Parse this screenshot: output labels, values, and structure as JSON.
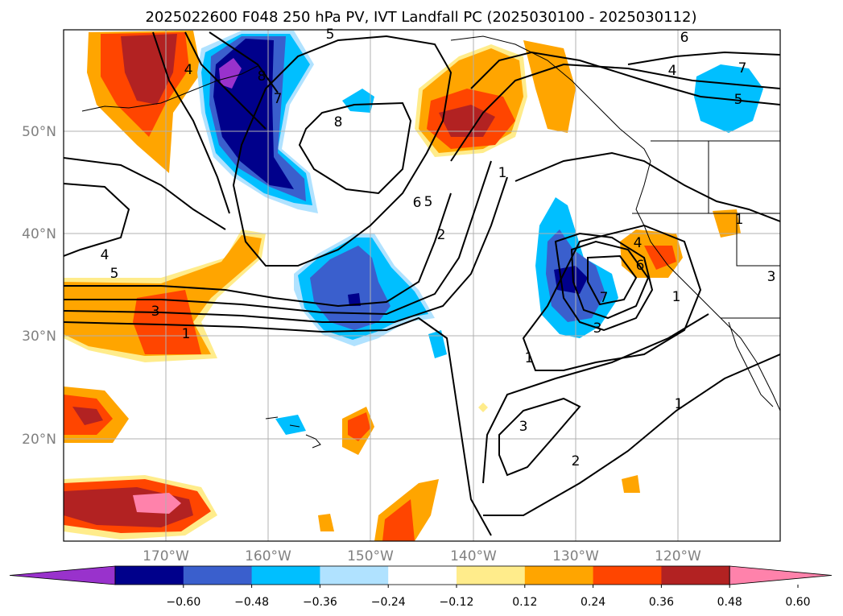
{
  "title": "2025022600 F048 250 hPa PV, IVT Landfall PC (2025030100 - 2025030112)",
  "map": {
    "lat_labels": [
      "50°N",
      "40°N",
      "30°N",
      "20°N"
    ],
    "lon_labels": [
      "170°W",
      "160°W",
      "150°W",
      "140°W",
      "130°W",
      "120°W"
    ],
    "lon_range": [
      -180,
      -110
    ],
    "lat_range": [
      10,
      60
    ],
    "grid": true
  },
  "colorbar": {
    "ticks": [
      "−0.60",
      "−0.48",
      "−0.36",
      "−0.24",
      "−0.12",
      "0.12",
      "0.24",
      "0.36",
      "0.48",
      "0.60"
    ],
    "colors": [
      "#9932cc",
      "#00008b",
      "#3a5fcd",
      "#00bfff",
      "#b0e2ff",
      "#ffffff",
      "#ffec8b",
      "#ffa500",
      "#ff4500",
      "#b22222",
      "#ff82ab"
    ]
  },
  "contour_labels": [
    "4",
    "5",
    "7",
    "8",
    "6",
    "4",
    "7",
    "5",
    "8",
    "6",
    "5",
    "2",
    "1",
    "4",
    "5",
    "3",
    "1",
    "4",
    "6",
    "7",
    "1",
    "1",
    "3",
    "2",
    "1",
    "3",
    "3",
    "1"
  ]
}
